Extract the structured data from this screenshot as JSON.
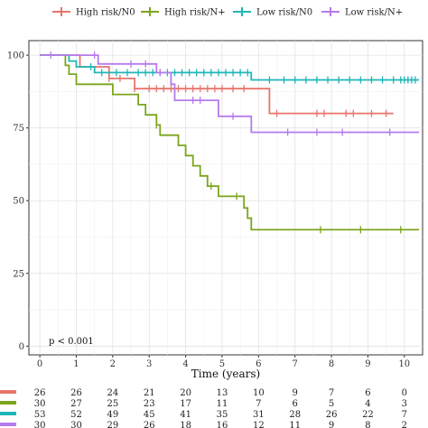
{
  "chart_data": {
    "type": "line",
    "subtype": "kaplan-meier",
    "xlabel": "Time (years)",
    "ylabel": "",
    "xlim": [
      -0.3,
      10.5
    ],
    "ylim": [
      -3,
      105
    ],
    "x_ticks": [
      0,
      1,
      2,
      3,
      4,
      5,
      6,
      7,
      8,
      9,
      10
    ],
    "y_ticks": [
      0,
      25,
      50,
      75,
      100
    ],
    "grid": true,
    "legend_position": "top",
    "annotation": "p < 0.001",
    "series": [
      {
        "name": "High risk/N0",
        "color": "#e8746c",
        "steps": [
          [
            0,
            100
          ],
          [
            1.1,
            96
          ],
          [
            1.9,
            92
          ],
          [
            2.6,
            88.5
          ],
          [
            6.3,
            80
          ],
          [
            9.7,
            80
          ]
        ],
        "censor_times": [
          1.9,
          2.2,
          2.6,
          3.0,
          3.2,
          3.4,
          3.6,
          3.8,
          4.0,
          4.2,
          4.4,
          4.6,
          4.8,
          5.0,
          5.3,
          5.6,
          6.5,
          7.6,
          7.8,
          8.4,
          8.6,
          9.1,
          9.5
        ]
      },
      {
        "name": "High risk/N+",
        "color": "#7aa51c",
        "steps": [
          [
            0,
            100
          ],
          [
            0.7,
            96.5
          ],
          [
            0.8,
            93.5
          ],
          [
            1.0,
            90
          ],
          [
            2.0,
            86.5
          ],
          [
            2.7,
            83
          ],
          [
            2.9,
            79.5
          ],
          [
            3.2,
            76
          ],
          [
            3.3,
            72.5
          ],
          [
            3.8,
            69
          ],
          [
            4.0,
            65.5
          ],
          [
            4.2,
            62
          ],
          [
            4.4,
            58.5
          ],
          [
            4.6,
            55
          ],
          [
            4.9,
            51.5
          ],
          [
            5.6,
            47.5
          ],
          [
            5.7,
            44
          ],
          [
            5.8,
            40
          ],
          [
            10.4,
            40
          ]
        ],
        "censor_times": [
          3.2,
          4.7,
          5.4,
          7.7,
          8.8,
          9.9
        ]
      },
      {
        "name": "Low risk/N0",
        "color": "#1fb6b6",
        "steps": [
          [
            0,
            100
          ],
          [
            0.8,
            98
          ],
          [
            1.0,
            96
          ],
          [
            1.5,
            94
          ],
          [
            5.8,
            91.5
          ],
          [
            10.4,
            91.5
          ]
        ],
        "censor_times": [
          1.4,
          1.7,
          2.1,
          2.4,
          2.7,
          2.9,
          3.1,
          3.3,
          3.5,
          3.7,
          3.9,
          4.1,
          4.3,
          4.5,
          4.7,
          4.9,
          5.1,
          5.3,
          5.5,
          5.7,
          6.3,
          6.7,
          7.0,
          7.3,
          7.6,
          7.9,
          8.2,
          8.5,
          8.8,
          9.1,
          9.4,
          9.7,
          9.9,
          10.0,
          10.1,
          10.2,
          10.3
        ]
      },
      {
        "name": "Low risk/N+",
        "color": "#b57bee",
        "steps": [
          [
            0,
            100
          ],
          [
            1.6,
            97
          ],
          [
            3.2,
            94
          ],
          [
            3.6,
            90
          ],
          [
            3.7,
            84.5
          ],
          [
            4.9,
            79
          ],
          [
            5.8,
            73.5
          ],
          [
            10.4,
            73.5
          ]
        ],
        "censor_times": [
          0.3,
          1.5,
          2.5,
          2.9,
          3.3,
          4.2,
          4.4,
          5.3,
          6.8,
          7.6,
          8.3,
          9.6
        ]
      }
    ],
    "risk_table": {
      "times": [
        0,
        1,
        2,
        3,
        4,
        5,
        6,
        7,
        8,
        9,
        10
      ],
      "rows": [
        {
          "name": "High risk/N0",
          "color": "#e8746c",
          "values": [
            "26",
            "26",
            "24",
            "21",
            "20",
            "13",
            "10",
            "9",
            "7",
            "6",
            "0"
          ]
        },
        {
          "name": "High risk/N+",
          "color": "#7aa51c",
          "values": [
            "30",
            "27",
            "25",
            "23",
            "17",
            "11",
            "7",
            "6",
            "5",
            "4",
            "3"
          ]
        },
        {
          "name": "Low risk/N0",
          "color": "#1fb6b6",
          "values": [
            "53",
            "52",
            "49",
            "45",
            "41",
            "35",
            "31",
            "28",
            "26",
            "22",
            "7"
          ]
        },
        {
          "name": "Low risk/N+",
          "color": "#b57bee",
          "values": [
            "30",
            "30",
            "29",
            "26",
            "18",
            "16",
            "12",
            "11",
            "9",
            "8",
            "2"
          ]
        }
      ]
    }
  }
}
